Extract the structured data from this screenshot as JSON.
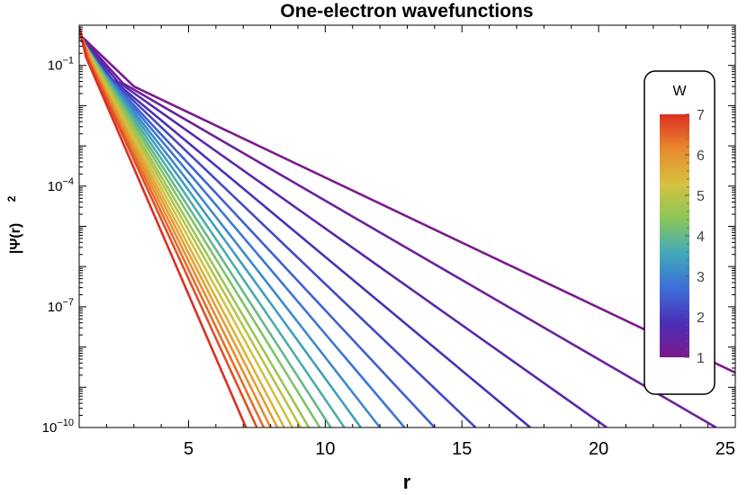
{
  "chart_data": {
    "type": "line",
    "title": "One-electron wavefunctions",
    "xlabel": "r",
    "ylabel": "|Ψ(r)",
    "ylabel_sup": "2",
    "xlim": [
      1,
      25
    ],
    "ylim": [
      1e-10,
      1
    ],
    "yscale": "log",
    "x_ticks": [
      {
        "value": 5,
        "label": "5"
      },
      {
        "value": 10,
        "label": "10"
      },
      {
        "value": 15,
        "label": "15"
      },
      {
        "value": 20,
        "label": "20"
      },
      {
        "value": 25,
        "label": "25"
      }
    ],
    "y_ticks": [
      {
        "value": 0.1,
        "base": "10",
        "exp": "−1"
      },
      {
        "value": 0.0001,
        "base": "10",
        "exp": "−4"
      },
      {
        "value": 1e-07,
        "base": "10",
        "exp": "−7"
      },
      {
        "value": 1e-10,
        "base": "10",
        "exp": "−10"
      }
    ],
    "grid": false,
    "legend": {
      "title": "W",
      "type": "colorbar",
      "placement": "right",
      "range": [
        1,
        7
      ],
      "ticks": [
        "1",
        "2",
        "3",
        "4",
        "5",
        "6",
        "7"
      ],
      "colormap": [
        "#7b1a8c",
        "#4a2fb8",
        "#3d6fd8",
        "#42a9b9",
        "#8cc65a",
        "#d6c13f",
        "#e88a2e",
        "#dc2f22"
      ]
    },
    "series_param": "W",
    "series_colormap": "rainbow",
    "series": [
      {
        "W": 1.0,
        "values": [
          [
            1,
            0.6
          ],
          [
            3,
            0.03
          ],
          [
            25,
            2.3e-09
          ]
        ]
      },
      {
        "W": 1.3,
        "values": [
          [
            1,
            0.58
          ],
          [
            2.6,
            0.036
          ],
          [
            24.3,
            1e-10
          ]
        ]
      },
      {
        "W": 1.6,
        "values": [
          [
            1,
            0.56
          ],
          [
            2.4,
            0.04
          ],
          [
            20.3,
            1e-10
          ]
        ]
      },
      {
        "W": 1.9,
        "values": [
          [
            1,
            0.54
          ],
          [
            2.2,
            0.045
          ],
          [
            17.5,
            1e-10
          ]
        ]
      },
      {
        "W": 2.2,
        "values": [
          [
            1,
            0.52
          ],
          [
            2.1,
            0.05
          ],
          [
            15.5,
            1e-10
          ]
        ]
      },
      {
        "W": 2.5,
        "values": [
          [
            1,
            0.5
          ],
          [
            2.0,
            0.055
          ],
          [
            14.0,
            1e-10
          ]
        ]
      },
      {
        "W": 2.8,
        "values": [
          [
            1,
            0.5
          ],
          [
            1.95,
            0.06
          ],
          [
            12.9,
            1e-10
          ]
        ]
      },
      {
        "W": 3.1,
        "values": [
          [
            1,
            0.51
          ],
          [
            1.9,
            0.065
          ],
          [
            12.0,
            1e-10
          ]
        ]
      },
      {
        "W": 3.4,
        "values": [
          [
            1,
            0.52
          ],
          [
            1.85,
            0.07
          ],
          [
            11.3,
            1e-10
          ]
        ]
      },
      {
        "W": 3.7,
        "values": [
          [
            1,
            0.54
          ],
          [
            1.8,
            0.075
          ],
          [
            10.7,
            1e-10
          ]
        ]
      },
      {
        "W": 4.0,
        "values": [
          [
            1,
            0.56
          ],
          [
            1.75,
            0.08
          ],
          [
            10.2,
            1e-10
          ]
        ]
      },
      {
        "W": 4.3,
        "values": [
          [
            1,
            0.58
          ],
          [
            1.7,
            0.085
          ],
          [
            9.8,
            1e-10
          ]
        ]
      },
      {
        "W": 4.6,
        "values": [
          [
            1,
            0.6
          ],
          [
            1.65,
            0.09
          ],
          [
            9.4,
            1e-10
          ]
        ]
      },
      {
        "W": 4.9,
        "values": [
          [
            1,
            0.63
          ],
          [
            1.6,
            0.095
          ],
          [
            9.1,
            1e-10
          ]
        ]
      },
      {
        "W": 5.2,
        "values": [
          [
            1,
            0.66
          ],
          [
            1.55,
            0.1
          ],
          [
            8.8,
            1e-10
          ]
        ]
      },
      {
        "W": 5.5,
        "values": [
          [
            1,
            0.7
          ],
          [
            1.5,
            0.11
          ],
          [
            8.5,
            1e-10
          ]
        ]
      },
      {
        "W": 5.8,
        "values": [
          [
            1,
            0.74
          ],
          [
            1.45,
            0.12
          ],
          [
            8.25,
            1e-10
          ]
        ]
      },
      {
        "W": 6.1,
        "values": [
          [
            1,
            0.78
          ],
          [
            1.4,
            0.13
          ],
          [
            8.0,
            1e-10
          ]
        ]
      },
      {
        "W": 6.4,
        "values": [
          [
            1,
            0.82
          ],
          [
            1.35,
            0.14
          ],
          [
            7.75,
            1e-10
          ]
        ]
      },
      {
        "W": 6.7,
        "values": [
          [
            1,
            0.87
          ],
          [
            1.3,
            0.15
          ],
          [
            7.5,
            1e-10
          ]
        ]
      },
      {
        "W": 7.0,
        "values": [
          [
            1,
            0.92
          ],
          [
            1.25,
            0.16
          ],
          [
            7.1,
            1e-10
          ]
        ]
      }
    ]
  }
}
